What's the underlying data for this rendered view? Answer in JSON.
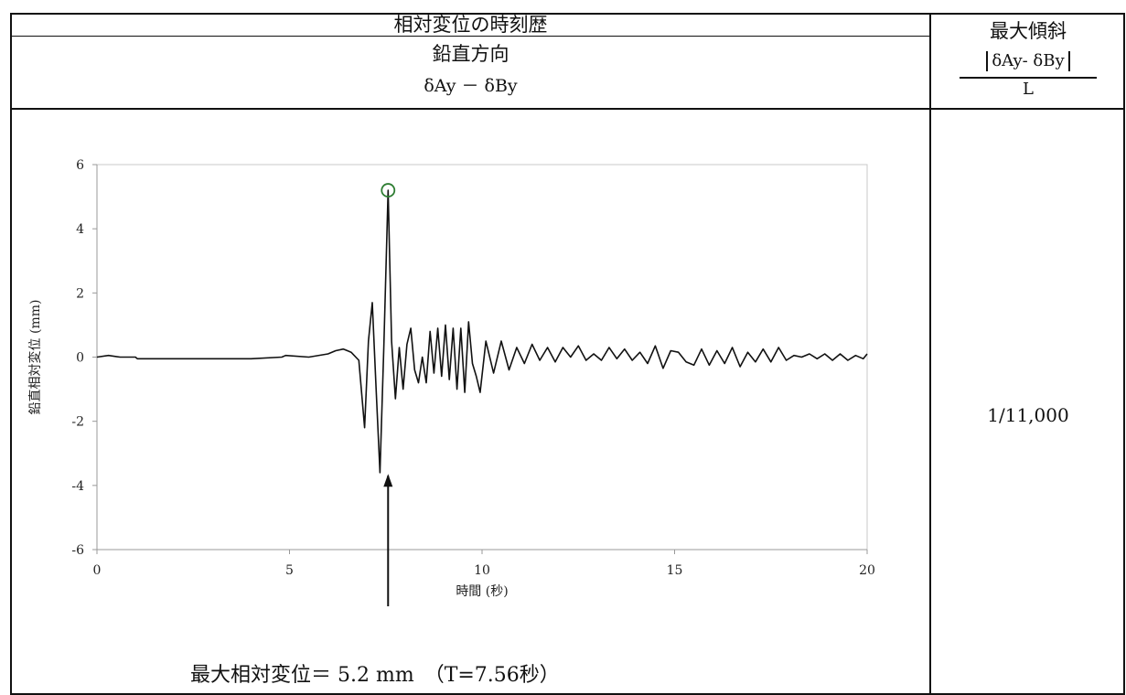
{
  "table": {
    "title": "相対変位の時刻歴",
    "subtitle": "鉛直方向",
    "expression": "δAy － δBy",
    "right_header": "最大傾斜",
    "formula_numerator": "δAy- δBy",
    "formula_denominator": "L",
    "max_tilt_value": "1/11,000"
  },
  "result_text": "最大相対変位＝ 5.2 mm　（T=7.56秒）",
  "colors": {
    "line": "#111111",
    "peak_marker": "#2e7d32",
    "plot_border": "#c8c8c8"
  },
  "chart_data": {
    "type": "line",
    "title": "",
    "xlabel": "時間 (秒)",
    "ylabel": "鉛直相対変位 (mm)",
    "xlim": [
      0,
      20
    ],
    "ylim": [
      -6,
      6
    ],
    "xticks": [
      0,
      5,
      10,
      15,
      20
    ],
    "yticks": [
      -6,
      -4,
      -2,
      0,
      2,
      4,
      6
    ],
    "grid": false,
    "peak": {
      "x": 7.56,
      "y": 5.2
    },
    "series": [
      {
        "x": [
          0,
          0.3,
          0.6,
          1.0,
          1.05,
          2,
          3,
          4,
          4.8,
          4.9,
          5.5,
          6.0,
          6.2,
          6.4,
          6.6,
          6.8,
          6.95,
          7.05,
          7.15,
          7.25,
          7.35,
          7.45,
          7.56,
          7.65,
          7.75,
          7.85,
          7.95,
          8.05,
          8.15,
          8.25,
          8.35,
          8.45,
          8.55,
          8.65,
          8.75,
          8.85,
          8.95,
          9.05,
          9.15,
          9.25,
          9.35,
          9.45,
          9.55,
          9.65,
          9.75,
          9.85,
          9.95,
          10.1,
          10.3,
          10.5,
          10.7,
          10.9,
          11.1,
          11.3,
          11.5,
          11.7,
          11.9,
          12.1,
          12.3,
          12.5,
          12.7,
          12.9,
          13.1,
          13.3,
          13.5,
          13.7,
          13.9,
          14.1,
          14.3,
          14.5,
          14.7,
          14.9,
          15.1,
          15.3,
          15.5,
          15.7,
          15.9,
          16.1,
          16.3,
          16.5,
          16.7,
          16.9,
          17.1,
          17.3,
          17.5,
          17.7,
          17.9,
          18.1,
          18.3,
          18.5,
          18.7,
          18.9,
          19.1,
          19.3,
          19.5,
          19.7,
          19.9,
          20
        ],
        "y": [
          0.0,
          0.05,
          0.0,
          0.0,
          -0.05,
          -0.05,
          -0.05,
          -0.05,
          0.0,
          0.05,
          0.0,
          0.1,
          0.2,
          0.25,
          0.15,
          -0.1,
          -2.2,
          0.5,
          1.7,
          -1.0,
          -3.6,
          0.3,
          5.2,
          0.5,
          -1.3,
          0.3,
          -1.0,
          0.4,
          0.9,
          -0.4,
          -0.8,
          0.0,
          -0.8,
          0.8,
          -0.5,
          0.9,
          -0.6,
          1.0,
          -0.7,
          0.9,
          -1.0,
          0.9,
          -1.1,
          1.1,
          -0.2,
          -0.6,
          -1.1,
          0.5,
          -0.5,
          0.5,
          -0.4,
          0.3,
          -0.2,
          0.4,
          -0.1,
          0.3,
          -0.15,
          0.3,
          0.0,
          0.35,
          -0.1,
          0.1,
          -0.1,
          0.3,
          -0.05,
          0.25,
          -0.1,
          0.15,
          -0.2,
          0.35,
          -0.35,
          0.2,
          0.15,
          -0.15,
          -0.25,
          0.25,
          -0.25,
          0.2,
          -0.2,
          0.3,
          -0.3,
          0.15,
          -0.15,
          0.25,
          -0.15,
          0.3,
          -0.1,
          0.05,
          0.0,
          0.1,
          -0.05,
          0.1,
          -0.1,
          0.1,
          -0.1,
          0.05,
          -0.05,
          0.1
        ]
      }
    ]
  }
}
